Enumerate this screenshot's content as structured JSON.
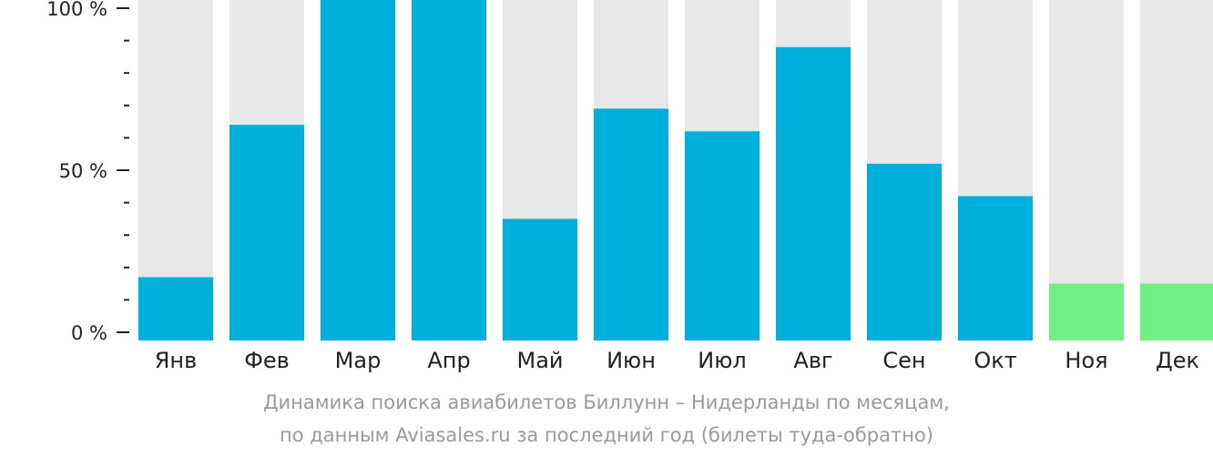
{
  "chart_data": {
    "type": "bar",
    "categories": [
      "Янв",
      "Фев",
      "Мар",
      "Апр",
      "Май",
      "Июн",
      "Июл",
      "Авг",
      "Сен",
      "Окт",
      "Ноя",
      "Дек"
    ],
    "values": [
      17,
      64,
      104,
      104,
      35,
      69,
      62,
      88,
      52,
      42,
      15,
      15
    ],
    "ylim": [
      0,
      100
    ],
    "yticks": [
      "0 %",
      "50 %",
      "100 %"
    ],
    "ytick_values": [
      0,
      50,
      100
    ],
    "minor_tick_step": 10,
    "colors": {
      "actual": "#00b0dc",
      "forecast": "#6ff085",
      "background_bar": "#e8e8e8",
      "axis": "#222222"
    },
    "forecast_categories": [
      "Ноя",
      "Дек"
    ],
    "caption": [
      "Динамика поиска авиабилетов Биллунн – Нидерланды по месяцам,",
      "по данным Aviasales.ru за последний год (билеты туда-обратно)"
    ]
  }
}
